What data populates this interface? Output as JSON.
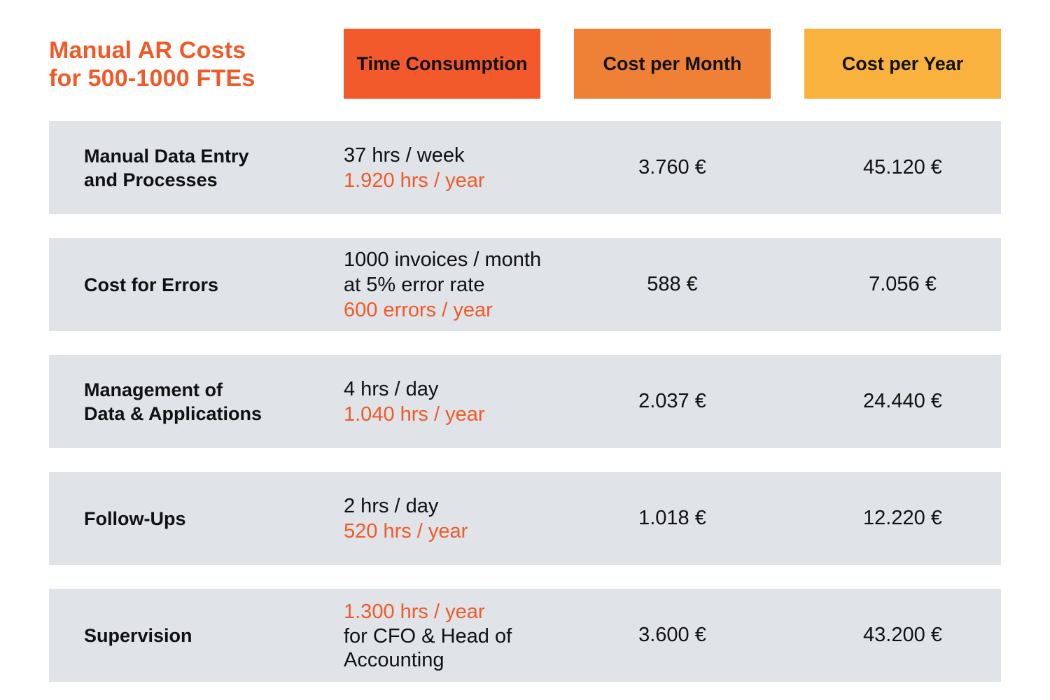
{
  "title": {
    "line1": "Manual AR Costs",
    "line2": "for 500-1000 FTEs"
  },
  "headers": {
    "time": "Time Consumption",
    "month": "Cost per Month",
    "year": "Cost per Year"
  },
  "colors": {
    "accent": "#f05a28",
    "header_time": "#f25a2c",
    "header_month": "#ef8137",
    "header_year": "#f9b23e",
    "row_bg": "#e0e3e8"
  },
  "rows": [
    {
      "label": [
        "Manual Data Entry",
        "and Processes"
      ],
      "time": {
        "line1": "37 hrs / week",
        "highlight": "1.920 hrs / year"
      },
      "month": "3.760 €",
      "year": "45.120 €"
    },
    {
      "label": [
        "Cost for Errors"
      ],
      "time": {
        "line1": "1000 invoices / month",
        "line2": "at 5% error rate",
        "highlight": "600 errors / year"
      },
      "month": "588 €",
      "year": "7.056 €"
    },
    {
      "label": [
        "Management of",
        "Data & Applications"
      ],
      "time": {
        "line1": "4 hrs / day",
        "highlight": "1.040 hrs / year"
      },
      "month": "2.037 €",
      "year": "24.440 €"
    },
    {
      "label": [
        "Follow-Ups"
      ],
      "time": {
        "line1": "2 hrs / day",
        "highlight": "520 hrs / year"
      },
      "month": "1.018 €",
      "year": "12.220 €"
    },
    {
      "label": [
        "Supervision"
      ],
      "time": {
        "highlight": "1.300 hrs / year",
        "line1": "for CFO & Head of",
        "line2": "Accounting"
      },
      "month": "3.600 €",
      "year": "43.200 €"
    }
  ]
}
